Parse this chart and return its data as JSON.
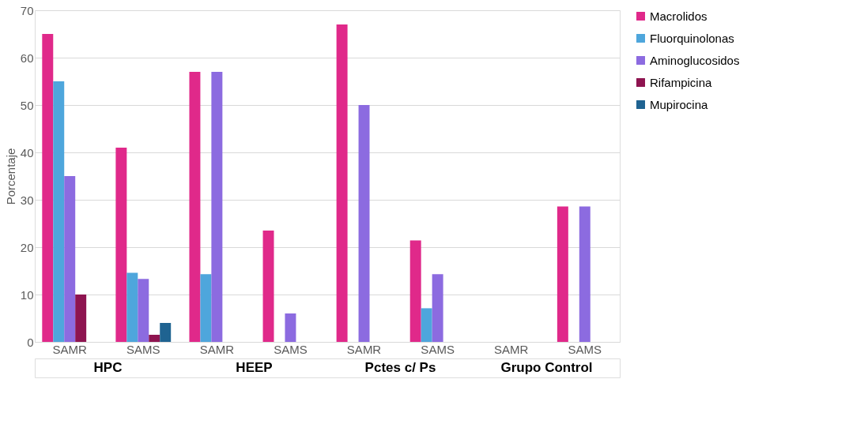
{
  "chart_data": {
    "type": "bar",
    "ylabel": "Porcentaje",
    "categories": [
      "SAMR",
      "SAMS",
      "SAMR",
      "SAMS",
      "SAMR",
      "SAMS",
      "SAMR",
      "SAMS"
    ],
    "series": [
      {
        "name": "Macrolidos",
        "color": "#e0298a",
        "values": [
          65,
          41,
          57,
          23.5,
          67,
          21.4,
          0,
          28.6
        ]
      },
      {
        "name": "Fluorquinolonas",
        "color": "#4ea6dc",
        "values": [
          55,
          14.6,
          14.3,
          0,
          0,
          7.1,
          0,
          0
        ]
      },
      {
        "name": "Aminoglucosidos",
        "color": "#8c6be0",
        "values": [
          35,
          13.3,
          57,
          6,
          50,
          14.3,
          0,
          28.6
        ]
      },
      {
        "name": "Rifampicina",
        "color": "#8e1450",
        "values": [
          10,
          1.5,
          0,
          0,
          0,
          0,
          0,
          0
        ]
      },
      {
        "name": "Mupirocina",
        "color": "#1f6391",
        "values": [
          0,
          4,
          0,
          0,
          0,
          0,
          0,
          0
        ]
      }
    ],
    "annotations": [
      "HPC",
      "HEEP",
      "Pctes c/ Ps",
      "Grupo Control"
    ],
    "ylim": [
      0,
      70
    ],
    "yticks": [
      0,
      10,
      20,
      30,
      40,
      50,
      60,
      70
    ],
    "grid": "y",
    "legend": "top right"
  }
}
